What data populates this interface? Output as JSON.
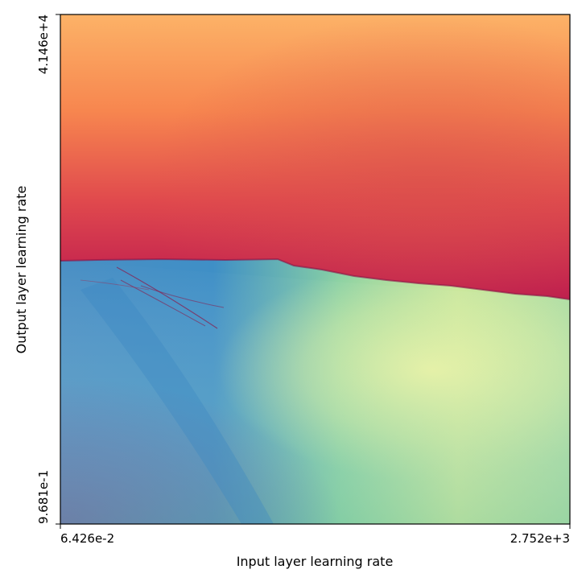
{
  "chart_data": {
    "type": "heatmap",
    "title": "",
    "xlabel": "Input layer learning rate",
    "ylabel": "Output layer learning rate",
    "x_range": [
      "6.426e-2",
      "2.752e+3"
    ],
    "y_range": [
      "9.681e-1",
      "4.146e+4"
    ],
    "x_tick_labels": [
      "6.426e-2",
      "2.752e+3"
    ],
    "y_tick_labels": [
      "9.681e-1",
      "4.146e+4"
    ],
    "x_scale": "log",
    "y_scale": "log",
    "colormap": "Spectral",
    "colormap_stops": [
      "#9e0142",
      "#d53e4f",
      "#f46d43",
      "#fdae61",
      "#fee08b",
      "#e6f598",
      "#abdda4",
      "#66c2a5",
      "#3288bd",
      "#5e4fa2"
    ],
    "grid": false,
    "legend": "none",
    "description": "Fractal training-convergence boundary: upper region (divergent) shades from dark red near the boundary to orange at top; lower region (convergent) shades from purple/blue at left to pale yellow-green at right."
  }
}
